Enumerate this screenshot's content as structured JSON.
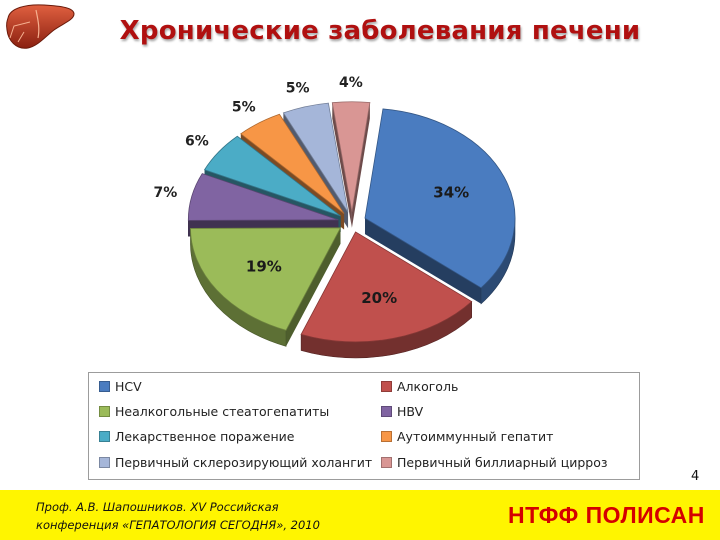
{
  "slide": {
    "title": "Хронические заболевания печени",
    "page_number": "4",
    "footer_citation_line1": "Проф. А.В. Шапошников. XV Российская",
    "footer_citation_line2": "конференция «ГЕПАТОЛОГИЯ СЕГОДНЯ», 2010",
    "footer_brand": "НТФФ ПОЛИСАН",
    "logo_icon": "liver-icon",
    "colors": {
      "title": "#b01010",
      "footer_bg": "#fff500",
      "brand": "#d40000"
    }
  },
  "chart_data": {
    "type": "pie",
    "style": "3d-exploded",
    "legend_position": "bottom",
    "series": [
      {
        "name": "HCV",
        "value": 34,
        "label": "34%",
        "color": "#4a7cc0"
      },
      {
        "name": "Алкоголь",
        "value": 20,
        "label": "20%",
        "color": "#c0504d"
      },
      {
        "name": "Неалкогольные стеатогепатиты",
        "value": 19,
        "label": "19%",
        "color": "#9bbb59"
      },
      {
        "name": "HBV",
        "value": 7,
        "label": "7%",
        "color": "#8064a2"
      },
      {
        "name": "Лекарственное поражение",
        "value": 6,
        "label": "6%",
        "color": "#4bacc6"
      },
      {
        "name": "Аутоиммунный гепатит",
        "value": 5,
        "label": "5%",
        "color": "#f79646"
      },
      {
        "name": "Первичный склерозирующий холангит",
        "value": 5,
        "label": "5%",
        "color": "#a5b6d9"
      },
      {
        "name": "Первичный биллиарный цирроз",
        "value": 4,
        "label": "4%",
        "color": "#d99694"
      }
    ]
  }
}
